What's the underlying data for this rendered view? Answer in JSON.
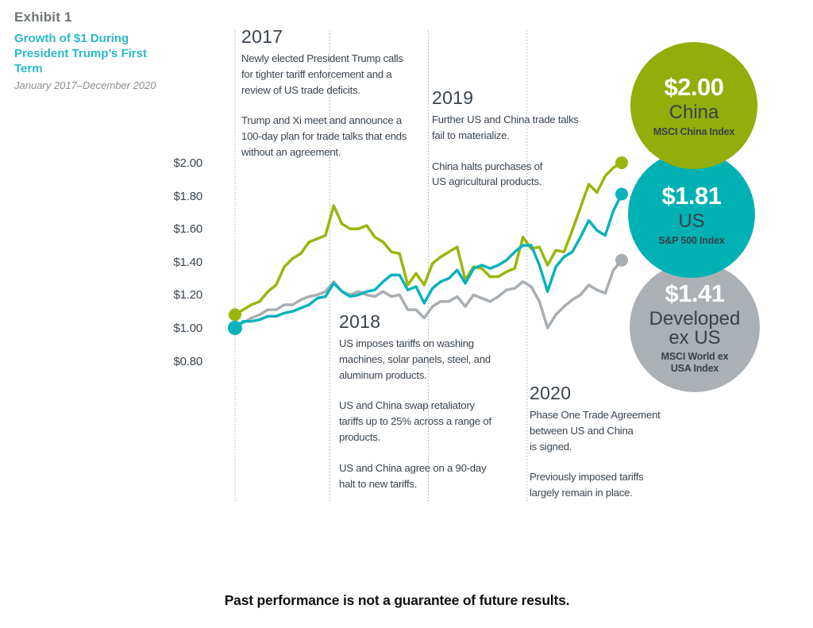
{
  "header": {
    "exhibit": "Exhibit 1",
    "title": "Growth of $1 During President Trump’s First Term",
    "subtitle": "January 2017–December 2020"
  },
  "annotations": [
    {
      "year": "2017",
      "paragraphs": [
        "Newly elected President Trump calls\nfor tighter tariff enforcement and a\nreview of US trade deficits.",
        "Trump and Xi meet and announce a\n100-day plan for trade talks that ends\nwithout an agreement."
      ]
    },
    {
      "year": "2018",
      "paragraphs": [
        "US imposes tariffs on washing\nmachines, solar panels, steel, and\naluminum products.",
        "US and China swap retaliatory\ntariffs up to 25% across a range of\nproducts.",
        "US and China agree on a 90-day\nhalt to new tariffs."
      ]
    },
    {
      "year": "2019",
      "paragraphs": [
        "Further US and China trade talks\nfail to materialize.",
        "China halts purchases of\nUS agricultural products."
      ]
    },
    {
      "year": "2020",
      "paragraphs": [
        "Phase One Trade Agreement\nbetween US and China\nis signed.",
        "Previously imposed tariffs\nlargely remain in place."
      ]
    }
  ],
  "badges": [
    {
      "value": "$2.00",
      "name": "China",
      "index": "MSCI China Index",
      "color": "#93AD0B"
    },
    {
      "value": "$1.81",
      "name": "US",
      "index": "S&P 500 Index",
      "color": "#00B1B4"
    },
    {
      "value": "$1.41",
      "name": "Developed ex US",
      "index": "MSCI World ex USA Index",
      "color": "#ABB0B4"
    }
  ],
  "footer": {
    "disclaimer": "Past performance is not a guarantee of future results."
  },
  "chart_data": {
    "type": "line",
    "title": "Growth of $1 During President Trump's First Term",
    "xlabel": "",
    "ylabel": "Growth of $1",
    "x_start": "Jan 2017",
    "x_end": "Dec 2020",
    "x_unit": "month",
    "ylim": [
      0.8,
      2.05
    ],
    "y_ticks": [
      "$2.00",
      "$1.80",
      "$1.60",
      "$1.40",
      "$1.20",
      "$1.00",
      "$0.80"
    ],
    "y_tick_values": [
      2.0,
      1.8,
      1.6,
      1.4,
      1.2,
      1.0,
      0.8
    ],
    "grid": false,
    "legend_position": "right-badges",
    "year_markers": [
      "2017",
      "2018",
      "2019",
      "2020"
    ],
    "year_marker_months": [
      0,
      11.5,
      23.5,
      35.5
    ],
    "marker_line_color": "#A9ADB0",
    "series": [
      {
        "name": "China",
        "index_name": "MSCI China Index",
        "color": "#9CB50E",
        "final_value": 2.0,
        "start_dot": true,
        "values": [
          1.08,
          1.11,
          1.14,
          1.16,
          1.22,
          1.26,
          1.37,
          1.42,
          1.45,
          1.52,
          1.54,
          1.56,
          1.74,
          1.63,
          1.6,
          1.6,
          1.62,
          1.55,
          1.52,
          1.46,
          1.45,
          1.26,
          1.33,
          1.26,
          1.39,
          1.43,
          1.46,
          1.49,
          1.29,
          1.37,
          1.36,
          1.31,
          1.31,
          1.34,
          1.36,
          1.55,
          1.48,
          1.49,
          1.38,
          1.47,
          1.46,
          1.59,
          1.73,
          1.87,
          1.82,
          1.92,
          1.97,
          2.0
        ]
      },
      {
        "name": "US",
        "index_name": "S&P 500 Index",
        "color": "#0AB2BB",
        "final_value": 1.81,
        "start_dot": true,
        "values": [
          1.0,
          1.04,
          1.04,
          1.05,
          1.07,
          1.07,
          1.09,
          1.1,
          1.12,
          1.14,
          1.18,
          1.19,
          1.27,
          1.22,
          1.19,
          1.2,
          1.22,
          1.23,
          1.28,
          1.32,
          1.32,
          1.23,
          1.25,
          1.15,
          1.24,
          1.28,
          1.3,
          1.35,
          1.27,
          1.36,
          1.38,
          1.36,
          1.38,
          1.41,
          1.46,
          1.5,
          1.5,
          1.38,
          1.22,
          1.37,
          1.43,
          1.46,
          1.55,
          1.65,
          1.59,
          1.56,
          1.71,
          1.81
        ]
      },
      {
        "name": "Developed ex US",
        "index_name": "MSCI World ex USA Index",
        "color": "#A9AEB2",
        "final_value": 1.41,
        "start_dot": false,
        "values": [
          1.02,
          1.03,
          1.06,
          1.08,
          1.11,
          1.11,
          1.14,
          1.14,
          1.17,
          1.19,
          1.2,
          1.22,
          1.28,
          1.22,
          1.2,
          1.22,
          1.2,
          1.19,
          1.22,
          1.19,
          1.2,
          1.11,
          1.11,
          1.06,
          1.13,
          1.16,
          1.16,
          1.19,
          1.13,
          1.2,
          1.18,
          1.16,
          1.19,
          1.23,
          1.24,
          1.28,
          1.25,
          1.16,
          1.0,
          1.08,
          1.13,
          1.17,
          1.2,
          1.26,
          1.23,
          1.21,
          1.35,
          1.41
        ]
      }
    ]
  }
}
